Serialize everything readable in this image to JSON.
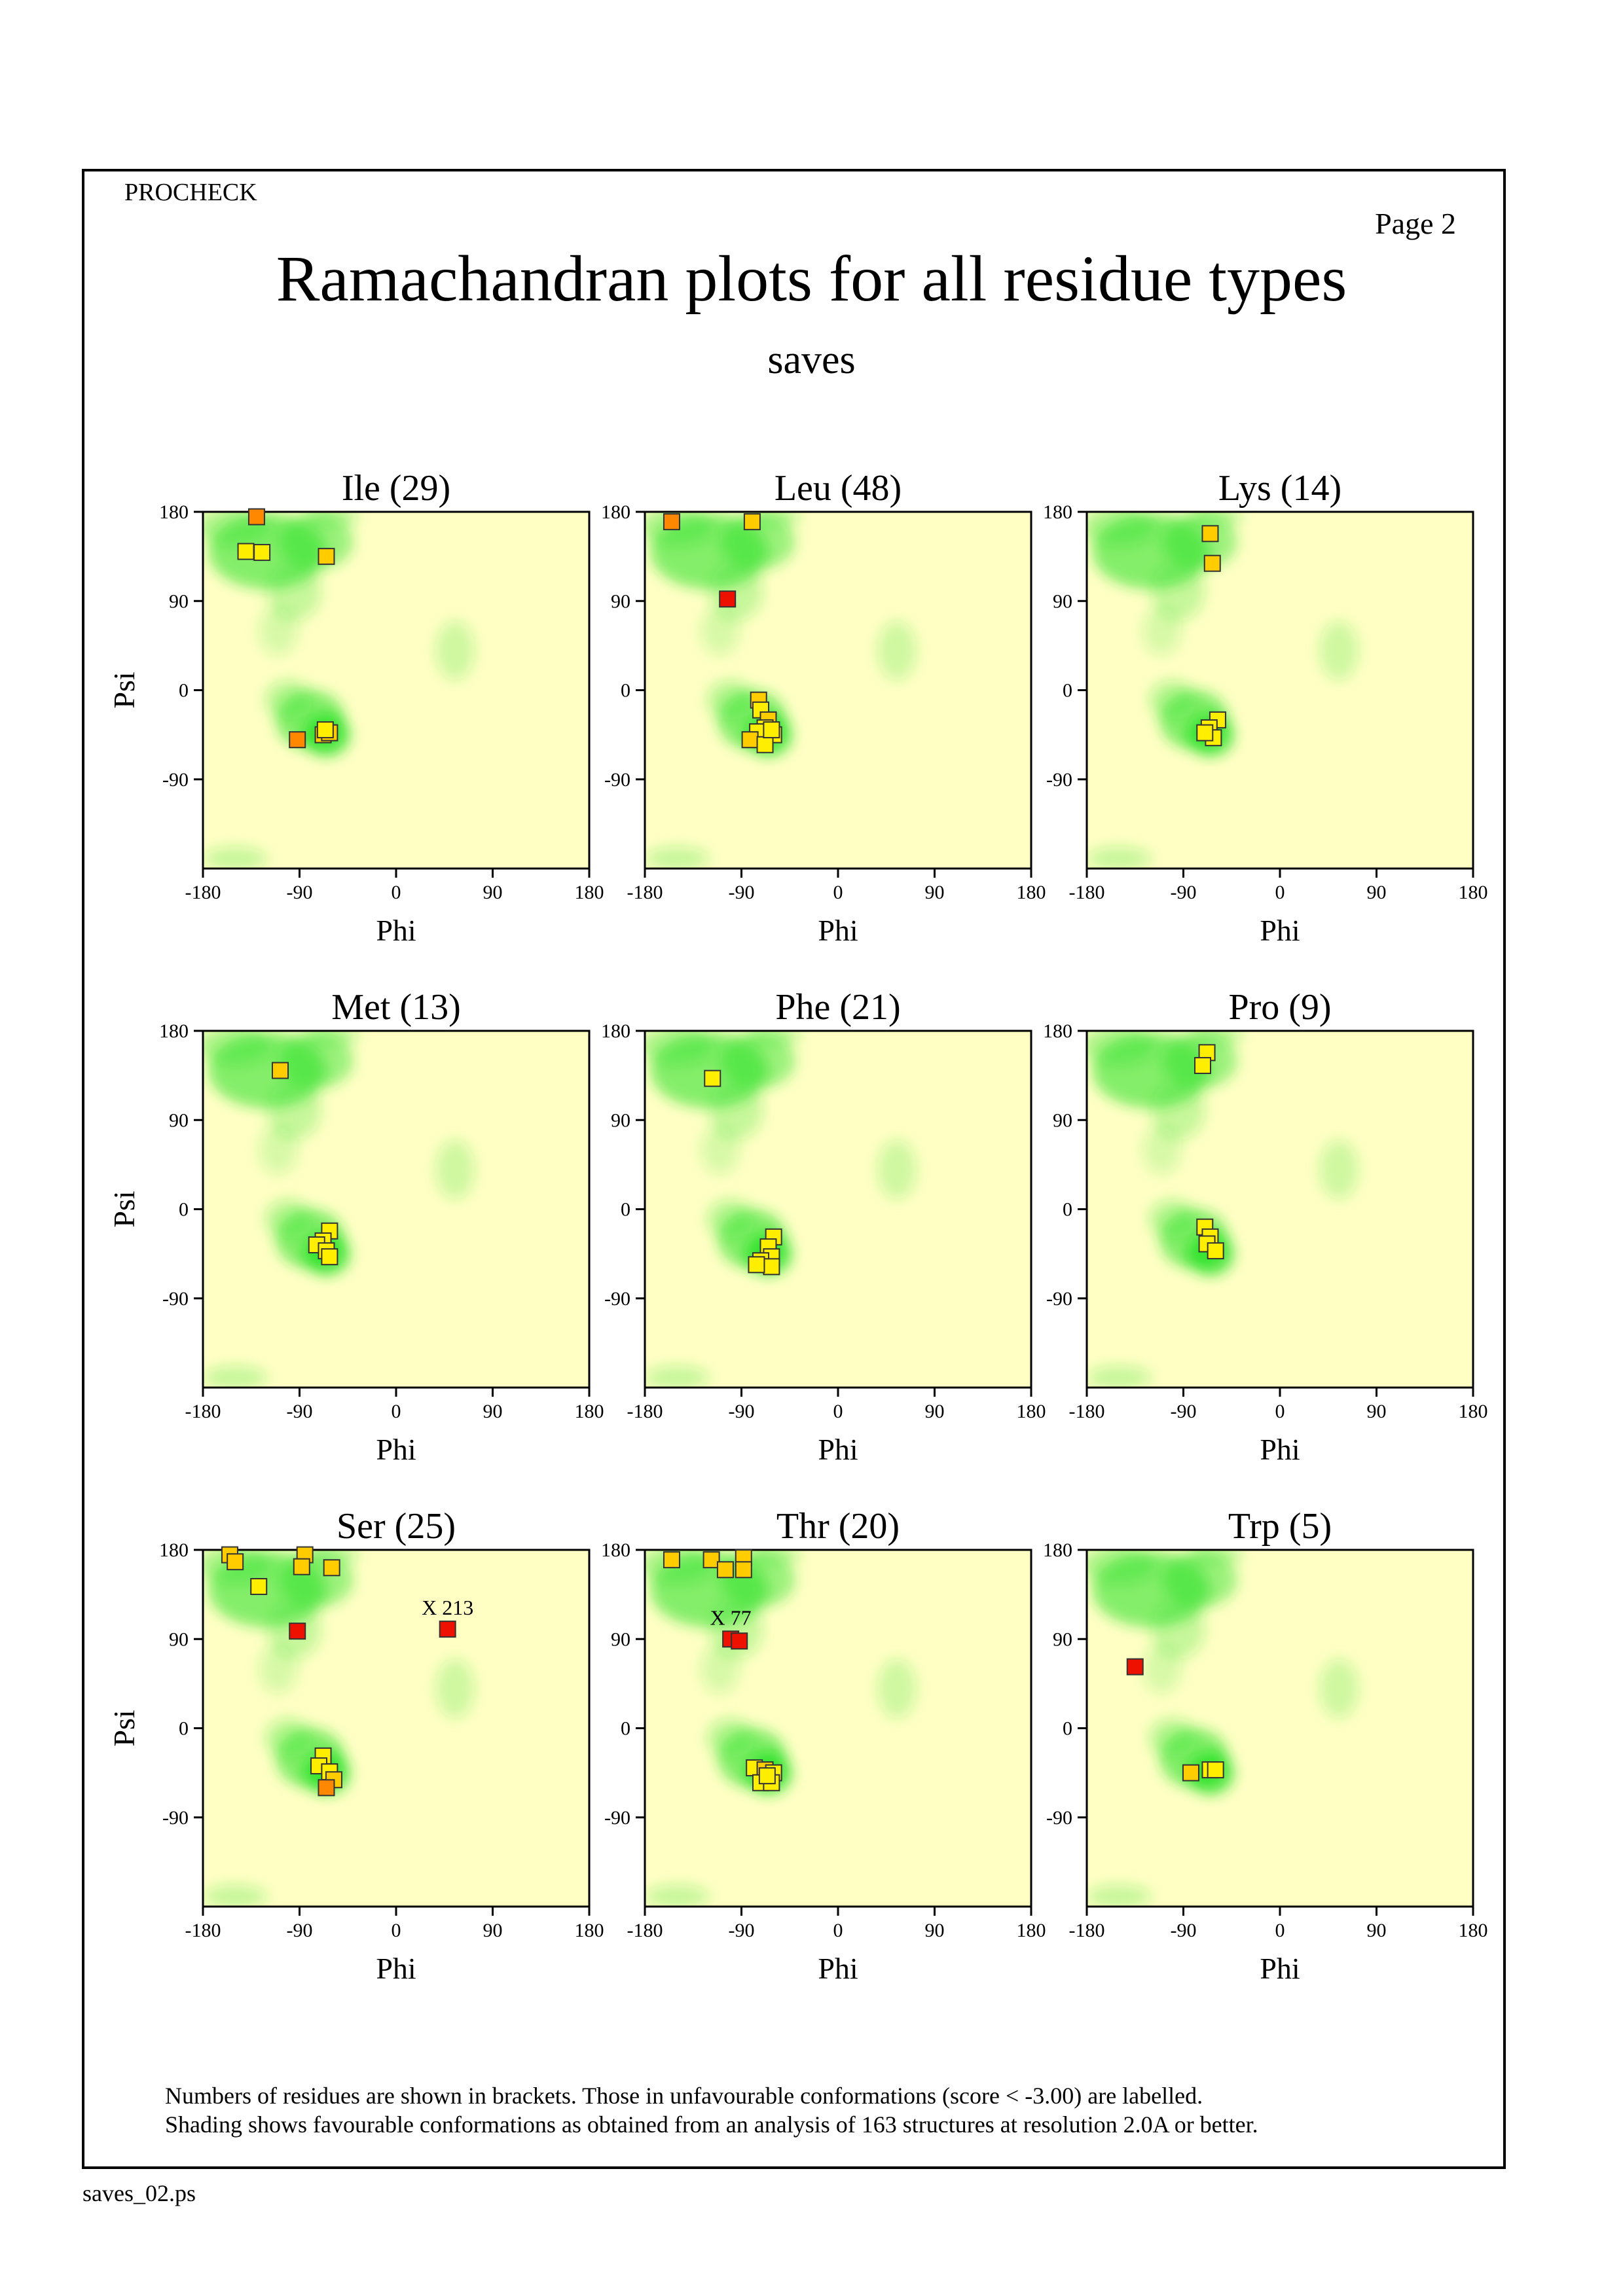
{
  "header": {
    "program": "PROCHECK",
    "page_label": "Page  2",
    "title": "Ramachandran plots for all residue types",
    "subtitle": "saves"
  },
  "footnote": {
    "line1": "Numbers of residues are shown in brackets. Those in unfavourable conformations (score < -3.00) are labelled.",
    "line2": "Shading shows favourable conformations as obtained from an analysis of 163 structures at resolution 2.0A or better."
  },
  "filename": "saves_02.ps",
  "colors": {
    "background": "#ffffc4",
    "favourable": "#22e022",
    "marker_yellow": "#ffee00",
    "marker_gold": "#ffcc00",
    "marker_orange": "#ff8800",
    "marker_red": "#ee1100"
  },
  "chart_data": [
    {
      "type": "scatter",
      "title": "Ile (29)",
      "xlabel": "Phi",
      "ylabel": "Psi",
      "xlim": [
        -180,
        180
      ],
      "ylim": [
        -180,
        180
      ],
      "xticks": [
        "-180",
        "-90",
        "0",
        "90",
        "180"
      ],
      "yticks": [
        "180",
        "90",
        "0",
        "-90"
      ],
      "points": [
        {
          "x": -130,
          "y": 175,
          "c": "orange"
        },
        {
          "x": -140,
          "y": 140,
          "c": "yellow"
        },
        {
          "x": -125,
          "y": 139,
          "c": "yellow"
        },
        {
          "x": -65,
          "y": 135,
          "c": "gold"
        },
        {
          "x": -68,
          "y": -45,
          "c": "gold"
        },
        {
          "x": -62,
          "y": -43,
          "c": "gold"
        },
        {
          "x": -66,
          "y": -40,
          "c": "yellow"
        },
        {
          "x": -92,
          "y": -50,
          "c": "orange"
        }
      ],
      "labels": []
    },
    {
      "type": "scatter",
      "title": "Leu (48)",
      "xlabel": "Phi",
      "ylabel": "Psi",
      "xlim": [
        -180,
        180
      ],
      "ylim": [
        -180,
        180
      ],
      "xticks": [
        "-180",
        "-90",
        "0",
        "90",
        "180"
      ],
      "yticks": [
        "180",
        "90",
        "0",
        "-90"
      ],
      "points": [
        {
          "x": -155,
          "y": 170,
          "c": "orange"
        },
        {
          "x": -80,
          "y": 170,
          "c": "gold"
        },
        {
          "x": -103,
          "y": 92,
          "c": "red"
        },
        {
          "x": -74,
          "y": -10,
          "c": "gold"
        },
        {
          "x": -72,
          "y": -20,
          "c": "yellow"
        },
        {
          "x": -65,
          "y": -30,
          "c": "gold"
        },
        {
          "x": -68,
          "y": -38,
          "c": "yellow"
        },
        {
          "x": -75,
          "y": -42,
          "c": "yellow"
        },
        {
          "x": -60,
          "y": -45,
          "c": "yellow"
        },
        {
          "x": -82,
          "y": -50,
          "c": "gold"
        },
        {
          "x": -68,
          "y": -55,
          "c": "yellow"
        },
        {
          "x": -62,
          "y": -40,
          "c": "yellow"
        }
      ],
      "labels": []
    },
    {
      "type": "scatter",
      "title": "Lys (14)",
      "xlabel": "Phi",
      "ylabel": "Psi",
      "xlim": [
        -180,
        180
      ],
      "ylim": [
        -180,
        180
      ],
      "xticks": [
        "-180",
        "-90",
        "0",
        "90",
        "180"
      ],
      "yticks": [
        "180",
        "90",
        "0",
        "-90"
      ],
      "points": [
        {
          "x": -65,
          "y": 158,
          "c": "gold"
        },
        {
          "x": -63,
          "y": 128,
          "c": "gold"
        },
        {
          "x": -58,
          "y": -30,
          "c": "yellow"
        },
        {
          "x": -66,
          "y": -38,
          "c": "yellow"
        },
        {
          "x": -62,
          "y": -48,
          "c": "yellow"
        },
        {
          "x": -70,
          "y": -43,
          "c": "yellow"
        }
      ],
      "labels": []
    },
    {
      "type": "scatter",
      "title": "Met (13)",
      "xlabel": "Phi",
      "ylabel": "Psi",
      "xlim": [
        -180,
        180
      ],
      "ylim": [
        -180,
        180
      ],
      "xticks": [
        "-180",
        "-90",
        "0",
        "90",
        "180"
      ],
      "yticks": [
        "180",
        "90",
        "0",
        "-90"
      ],
      "points": [
        {
          "x": -108,
          "y": 140,
          "c": "gold"
        },
        {
          "x": -62,
          "y": -22,
          "c": "yellow"
        },
        {
          "x": -68,
          "y": -32,
          "c": "yellow"
        },
        {
          "x": -74,
          "y": -36,
          "c": "yellow"
        },
        {
          "x": -65,
          "y": -42,
          "c": "yellow"
        },
        {
          "x": -62,
          "y": -48,
          "c": "yellow"
        }
      ],
      "labels": []
    },
    {
      "type": "scatter",
      "title": "Phe (21)",
      "xlabel": "Phi",
      "ylabel": "Psi",
      "xlim": [
        -180,
        180
      ],
      "ylim": [
        -180,
        180
      ],
      "xticks": [
        "-180",
        "-90",
        "0",
        "90",
        "180"
      ],
      "yticks": [
        "180",
        "90",
        "0",
        "-90"
      ],
      "points": [
        {
          "x": -117,
          "y": 132,
          "c": "yellow"
        },
        {
          "x": -60,
          "y": -28,
          "c": "yellow"
        },
        {
          "x": -65,
          "y": -38,
          "c": "yellow"
        },
        {
          "x": -62,
          "y": -48,
          "c": "yellow"
        },
        {
          "x": -72,
          "y": -52,
          "c": "yellow"
        },
        {
          "x": -62,
          "y": -58,
          "c": "yellow"
        },
        {
          "x": -76,
          "y": -56,
          "c": "yellow"
        }
      ],
      "labels": []
    },
    {
      "type": "scatter",
      "title": "Pro (9)",
      "xlabel": "Phi",
      "ylabel": "Psi",
      "xlim": [
        -180,
        180
      ],
      "ylim": [
        -180,
        180
      ],
      "xticks": [
        "-180",
        "-90",
        "0",
        "90",
        "180"
      ],
      "yticks": [
        "180",
        "90",
        "0",
        "-90"
      ],
      "points": [
        {
          "x": -68,
          "y": 158,
          "c": "yellow"
        },
        {
          "x": -72,
          "y": 145,
          "c": "yellow"
        },
        {
          "x": -70,
          "y": -18,
          "c": "yellow"
        },
        {
          "x": -65,
          "y": -28,
          "c": "yellow"
        },
        {
          "x": -68,
          "y": -35,
          "c": "yellow"
        },
        {
          "x": -60,
          "y": -42,
          "c": "yellow"
        }
      ],
      "labels": []
    },
    {
      "type": "scatter",
      "title": "Ser (25)",
      "xlabel": "Phi",
      "ylabel": "Psi",
      "xlim": [
        -180,
        180
      ],
      "ylim": [
        -180,
        180
      ],
      "xticks": [
        "-180",
        "-90",
        "0",
        "90",
        "180"
      ],
      "yticks": [
        "180",
        "90",
        "0",
        "-90"
      ],
      "points": [
        {
          "x": -155,
          "y": 175,
          "c": "gold"
        },
        {
          "x": -150,
          "y": 168,
          "c": "gold"
        },
        {
          "x": -85,
          "y": 175,
          "c": "gold"
        },
        {
          "x": -88,
          "y": 163,
          "c": "gold"
        },
        {
          "x": -60,
          "y": 162,
          "c": "gold"
        },
        {
          "x": -128,
          "y": 143,
          "c": "yellow"
        },
        {
          "x": -92,
          "y": 98,
          "c": "red"
        },
        {
          "x": 48,
          "y": 100,
          "c": "red"
        },
        {
          "x": -68,
          "y": -28,
          "c": "yellow"
        },
        {
          "x": -72,
          "y": -38,
          "c": "yellow"
        },
        {
          "x": -62,
          "y": -44,
          "c": "yellow"
        },
        {
          "x": -58,
          "y": -52,
          "c": "gold"
        },
        {
          "x": -65,
          "y": -60,
          "c": "orange"
        }
      ],
      "labels": [
        {
          "x": 48,
          "y": 100,
          "text": "X 213"
        }
      ]
    },
    {
      "type": "scatter",
      "title": "Thr (20)",
      "xlabel": "Phi",
      "ylabel": "Psi",
      "xlim": [
        -180,
        180
      ],
      "ylim": [
        -180,
        180
      ],
      "xticks": [
        "-180",
        "-90",
        "0",
        "90",
        "180"
      ],
      "yticks": [
        "180",
        "90",
        "0",
        "-90"
      ],
      "points": [
        {
          "x": -155,
          "y": 170,
          "c": "gold"
        },
        {
          "x": -118,
          "y": 170,
          "c": "gold"
        },
        {
          "x": -105,
          "y": 160,
          "c": "gold"
        },
        {
          "x": -88,
          "y": 172,
          "c": "gold"
        },
        {
          "x": -88,
          "y": 160,
          "c": "gold"
        },
        {
          "x": -100,
          "y": 90,
          "c": "red"
        },
        {
          "x": -92,
          "y": 88,
          "c": "red"
        },
        {
          "x": -78,
          "y": -40,
          "c": "yellow"
        },
        {
          "x": -68,
          "y": -42,
          "c": "gold"
        },
        {
          "x": -60,
          "y": -45,
          "c": "yellow"
        },
        {
          "x": -72,
          "y": -55,
          "c": "yellow"
        },
        {
          "x": -62,
          "y": -55,
          "c": "yellow"
        },
        {
          "x": -66,
          "y": -48,
          "c": "yellow"
        }
      ],
      "labels": [
        {
          "x": -100,
          "y": 90,
          "text": "X  77"
        }
      ]
    },
    {
      "type": "scatter",
      "title": "Trp (5)",
      "xlabel": "Phi",
      "ylabel": "Psi",
      "xlim": [
        -180,
        180
      ],
      "ylim": [
        -180,
        180
      ],
      "xticks": [
        "-180",
        "-90",
        "0",
        "90",
        "180"
      ],
      "yticks": [
        "180",
        "90",
        "0",
        "-90"
      ],
      "points": [
        {
          "x": -135,
          "y": 62,
          "c": "red"
        },
        {
          "x": -83,
          "y": -45,
          "c": "gold"
        },
        {
          "x": -65,
          "y": -42,
          "c": "yellow"
        },
        {
          "x": -60,
          "y": -42,
          "c": "yellow"
        }
      ],
      "labels": []
    }
  ]
}
